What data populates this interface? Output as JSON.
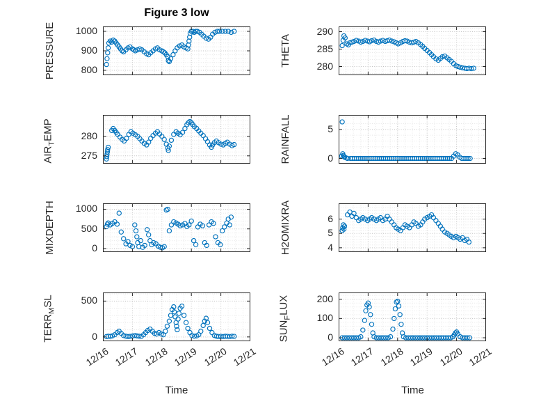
{
  "title": "Figure 3 low",
  "x_axis": {
    "label": "Time",
    "lim": [
      0,
      5
    ],
    "ticks": [
      0,
      1,
      2,
      3,
      4,
      5
    ],
    "tick_labels": [
      "12/16",
      "12/17",
      "12/18",
      "12/19",
      "12/20",
      "12/21"
    ]
  },
  "style": {
    "marker_color": "#0072BD",
    "axis_color": "#262626",
    "grid_color": "#c3c3c3",
    "minor_grid_color": "#e7e7e7"
  },
  "chart_data": [
    {
      "type": "scatter",
      "name": "PRESSURE",
      "row": 0,
      "col": 0,
      "ylabel_parts": [
        {
          "text": "PRESSURE",
          "sub": false
        }
      ],
      "ylim": [
        775,
        1025
      ],
      "yticks": [
        800,
        900,
        1000
      ],
      "x": [
        0.12,
        0.14,
        0.16,
        0.18,
        0.2,
        0.25,
        0.3,
        0.35,
        0.4,
        0.45,
        0.5,
        0.55,
        0.6,
        0.65,
        0.7,
        0.78,
        0.85,
        0.92,
        1.0,
        1.05,
        1.1,
        1.18,
        1.25,
        1.32,
        1.4,
        1.48,
        1.55,
        1.62,
        1.7,
        1.78,
        1.85,
        1.92,
        2.0,
        2.05,
        2.1,
        2.15,
        2.2,
        2.22,
        2.25,
        2.3,
        2.38,
        2.45,
        2.52,
        2.6,
        2.68,
        2.75,
        2.82,
        2.88,
        2.9,
        2.92,
        2.94,
        2.96,
        3.0,
        3.05,
        3.1,
        3.15,
        3.2,
        3.28,
        3.35,
        3.42,
        3.5,
        3.58,
        3.65,
        3.72,
        3.8,
        3.88,
        3.95,
        4.05,
        4.15,
        4.25,
        4.35,
        4.45
      ],
      "y": [
        830,
        860,
        890,
        915,
        940,
        950,
        945,
        955,
        950,
        940,
        930,
        920,
        910,
        900,
        895,
        905,
        915,
        920,
        910,
        905,
        900,
        905,
        910,
        905,
        895,
        885,
        880,
        890,
        900,
        910,
        915,
        905,
        900,
        895,
        890,
        880,
        870,
        850,
        845,
        860,
        880,
        900,
        915,
        925,
        930,
        920,
        915,
        910,
        930,
        950,
        970,
        990,
        1000,
        1000,
        995,
        1000,
        1000,
        995,
        985,
        975,
        965,
        960,
        970,
        985,
        995,
        1000,
        1000,
        1000,
        1000,
        1000,
        995,
        1000
      ]
    },
    {
      "type": "scatter",
      "name": "AIR_TEMP",
      "row": 1,
      "col": 0,
      "ylabel_parts": [
        {
          "text": "AIR",
          "sub": false
        },
        {
          "text": "T",
          "sub": true
        },
        {
          "text": "EMP",
          "sub": false
        }
      ],
      "ylim": [
        273,
        285.5
      ],
      "yticks": [
        275,
        280
      ],
      "x": [
        0.12,
        0.13,
        0.14,
        0.15,
        0.16,
        0.18,
        0.3,
        0.35,
        0.4,
        0.45,
        0.5,
        0.58,
        0.65,
        0.72,
        0.8,
        0.88,
        0.95,
        1.02,
        1.1,
        1.18,
        1.25,
        1.32,
        1.4,
        1.48,
        1.55,
        1.62,
        1.7,
        1.78,
        1.85,
        1.92,
        2.0,
        2.08,
        2.15,
        2.2,
        2.22,
        2.25,
        2.32,
        2.4,
        2.48,
        2.55,
        2.62,
        2.7,
        2.78,
        2.85,
        2.9,
        2.95,
        3.0,
        3.05,
        3.1,
        3.18,
        3.25,
        3.32,
        3.4,
        3.48,
        3.55,
        3.62,
        3.68,
        3.72,
        3.78,
        3.85,
        3.92,
        4.0,
        4.08,
        4.15,
        4.22,
        4.3,
        4.38,
        4.45
      ],
      "y": [
        274.2,
        274.8,
        275.4,
        276.0,
        276.6,
        277.2,
        281.5,
        282.0,
        281.5,
        281.0,
        280.5,
        279.8,
        279.2,
        278.8,
        279.5,
        280.5,
        281.2,
        280.8,
        280.4,
        280.0,
        279.4,
        278.8,
        278.2,
        277.8,
        278.5,
        279.5,
        280.2,
        280.8,
        281.2,
        280.6,
        280.0,
        279.2,
        278.0,
        277.0,
        276.4,
        277.5,
        279.0,
        280.5,
        281.2,
        280.8,
        280.4,
        281.0,
        282.0,
        283.0,
        283.5,
        283.8,
        283.5,
        283.0,
        282.5,
        282.0,
        281.4,
        280.8,
        280.2,
        279.4,
        278.6,
        277.8,
        277.2,
        277.8,
        278.4,
        278.8,
        278.4,
        278.0,
        277.8,
        278.2,
        278.5,
        278.0,
        277.6,
        277.9
      ]
    },
    {
      "type": "scatter",
      "name": "MIXDEPTH",
      "row": 2,
      "col": 0,
      "ylabel_parts": [
        {
          "text": "MIXDEPTH",
          "sub": false
        }
      ],
      "ylim": [
        -90,
        1150
      ],
      "yticks": [
        0,
        500,
        1000
      ],
      "x": [
        0.12,
        0.15,
        0.18,
        0.25,
        0.32,
        0.4,
        0.48,
        0.55,
        0.62,
        0.7,
        0.78,
        0.85,
        0.92,
        1.0,
        1.08,
        1.12,
        1.15,
        1.18,
        1.22,
        1.28,
        1.35,
        1.42,
        1.5,
        1.55,
        1.6,
        1.65,
        1.72,
        1.8,
        1.88,
        1.95,
        2.02,
        2.08,
        2.15,
        2.2,
        2.25,
        2.32,
        2.4,
        2.48,
        2.55,
        2.62,
        2.7,
        2.78,
        2.85,
        2.92,
        3.0,
        3.08,
        3.15,
        3.22,
        3.3,
        3.38,
        3.45,
        3.52,
        3.6,
        3.68,
        3.75,
        3.82,
        3.9,
        3.98,
        4.05,
        4.12,
        4.2,
        4.25,
        4.3,
        4.35
      ],
      "y": [
        560,
        620,
        650,
        600,
        640,
        680,
        620,
        900,
        420,
        250,
        120,
        180,
        80,
        50,
        600,
        450,
        300,
        150,
        50,
        200,
        30,
        80,
        480,
        350,
        200,
        100,
        150,
        120,
        60,
        30,
        20,
        50,
        980,
        1000,
        450,
        600,
        680,
        650,
        620,
        580,
        600,
        640,
        560,
        600,
        700,
        200,
        100,
        550,
        620,
        580,
        150,
        80,
        600,
        680,
        640,
        300,
        150,
        100,
        450,
        550,
        650,
        750,
        600,
        800
      ]
    },
    {
      "type": "scatter",
      "name": "TERR_MSL",
      "row": 3,
      "col": 0,
      "ylabel_parts": [
        {
          "text": "TERR",
          "sub": false
        },
        {
          "text": "M",
          "sub": true
        },
        {
          "text": "SL",
          "sub": false
        }
      ],
      "ylim": [
        -60,
        620
      ],
      "yticks": [
        0,
        500
      ],
      "x": [
        0.12,
        0.18,
        0.25,
        0.32,
        0.4,
        0.48,
        0.55,
        0.62,
        0.7,
        0.78,
        0.85,
        0.92,
        1.0,
        1.08,
        1.15,
        1.22,
        1.3,
        1.38,
        1.45,
        1.52,
        1.6,
        1.68,
        1.75,
        1.82,
        1.9,
        1.98,
        2.05,
        2.12,
        2.18,
        2.25,
        2.3,
        2.35,
        2.4,
        2.42,
        2.45,
        2.48,
        2.5,
        2.52,
        2.55,
        2.58,
        2.62,
        2.68,
        2.75,
        2.82,
        2.88,
        2.95,
        3.02,
        3.1,
        3.18,
        3.25,
        3.32,
        3.4,
        3.45,
        3.5,
        3.55,
        3.62,
        3.7,
        3.78,
        3.85,
        3.92,
        4.0,
        4.08,
        4.15,
        4.22,
        4.3,
        4.38,
        4.45
      ],
      "y": [
        5,
        10,
        8,
        15,
        30,
        60,
        80,
        50,
        20,
        10,
        5,
        8,
        12,
        20,
        15,
        10,
        8,
        30,
        60,
        90,
        110,
        80,
        50,
        40,
        60,
        40,
        30,
        80,
        150,
        220,
        300,
        380,
        420,
        350,
        280,
        200,
        150,
        100,
        250,
        330,
        400,
        430,
        300,
        200,
        120,
        60,
        20,
        10,
        15,
        30,
        80,
        160,
        220,
        260,
        200,
        120,
        60,
        20,
        10,
        5,
        8,
        5,
        10,
        8,
        5,
        10,
        8
      ]
    },
    {
      "type": "scatter",
      "name": "THETA",
      "row": 0,
      "col": 1,
      "ylabel_parts": [
        {
          "text": "THETA",
          "sub": false
        }
      ],
      "ylim": [
        277.5,
        291.5
      ],
      "yticks": [
        280,
        285,
        290
      ],
      "x": [
        0.12,
        0.15,
        0.18,
        0.22,
        0.28,
        0.33,
        0.38,
        0.45,
        0.52,
        0.6,
        0.68,
        0.75,
        0.82,
        0.9,
        0.98,
        1.05,
        1.12,
        1.2,
        1.28,
        1.35,
        1.42,
        1.5,
        1.58,
        1.65,
        1.72,
        1.8,
        1.88,
        1.95,
        2.02,
        2.1,
        2.18,
        2.25,
        2.32,
        2.4,
        2.48,
        2.55,
        2.62,
        2.7,
        2.78,
        2.85,
        2.92,
        3.0,
        3.08,
        3.15,
        3.22,
        3.3,
        3.38,
        3.45,
        3.52,
        3.6,
        3.68,
        3.75,
        3.82,
        3.9,
        3.98,
        4.05,
        4.12,
        4.2,
        4.28,
        4.35,
        4.42,
        4.5,
        4.58
      ],
      "y": [
        286.0,
        287.5,
        288.8,
        288.2,
        286.5,
        286.2,
        286.8,
        287.0,
        287.2,
        287.5,
        287.3,
        287.0,
        287.2,
        287.5,
        287.3,
        287.1,
        287.4,
        287.6,
        287.2,
        287.0,
        287.3,
        287.5,
        287.2,
        287.4,
        287.6,
        287.3,
        287.1,
        286.8,
        286.5,
        286.8,
        287.2,
        287.4,
        287.3,
        287.0,
        286.8,
        287.0,
        287.2,
        286.8,
        286.3,
        285.8,
        285.2,
        284.6,
        284.0,
        283.4,
        282.8,
        282.2,
        281.8,
        282.3,
        282.8,
        283.0,
        282.5,
        282.0,
        281.5,
        280.8,
        280.2,
        280.0,
        279.8,
        279.6,
        279.5,
        279.4,
        279.5,
        279.4,
        279.5
      ]
    },
    {
      "type": "scatter",
      "name": "RAINFALL",
      "row": 1,
      "col": 1,
      "ylabel_parts": [
        {
          "text": "RAINFALL",
          "sub": false
        }
      ],
      "ylim": [
        -0.9,
        7.5
      ],
      "yticks": [
        0,
        5
      ],
      "x": [
        0.1,
        0.12,
        0.14,
        0.16,
        0.18,
        0.2,
        0.25,
        0.3,
        0.4,
        0.47,
        0.54,
        0.61,
        0.68,
        0.75,
        0.82,
        0.89,
        0.96,
        1.03,
        1.1,
        1.17,
        1.24,
        1.31,
        1.38,
        1.45,
        1.52,
        1.59,
        1.66,
        1.73,
        1.8,
        1.87,
        1.94,
        2.01,
        2.08,
        2.15,
        2.22,
        2.29,
        2.36,
        2.43,
        2.5,
        2.57,
        2.64,
        2.71,
        2.78,
        2.85,
        2.92,
        2.99,
        3.06,
        3.13,
        3.2,
        3.27,
        3.34,
        3.41,
        3.48,
        3.55,
        3.62,
        3.69,
        3.76,
        3.83,
        3.9,
        3.97,
        4.04,
        4.11,
        4.18,
        4.25,
        4.32,
        4.39,
        4.46
      ],
      "y": [
        0.4,
        6.3,
        0.8,
        0.5,
        0.3,
        0.2,
        0.1,
        0,
        0,
        0,
        0,
        0,
        0,
        0,
        0,
        0,
        0,
        0,
        0,
        0,
        0,
        0,
        0,
        0,
        0,
        0,
        0,
        0,
        0,
        0,
        0,
        0,
        0,
        0,
        0,
        0,
        0,
        0,
        0,
        0,
        0,
        0,
        0,
        0,
        0,
        0,
        0,
        0,
        0,
        0,
        0,
        0,
        0,
        0,
        0,
        0,
        0,
        0,
        0.4,
        0.8,
        0.6,
        0.2,
        0,
        0,
        0,
        0,
        0
      ]
    },
    {
      "type": "scatter",
      "name": "H2OMIXRA",
      "row": 2,
      "col": 1,
      "ylabel_parts": [
        {
          "text": "H2OMIXRA",
          "sub": false
        }
      ],
      "ylim": [
        3.7,
        7.1
      ],
      "yticks": [
        4,
        5,
        6
      ],
      "x": [
        0.12,
        0.14,
        0.16,
        0.18,
        0.2,
        0.3,
        0.38,
        0.45,
        0.52,
        0.6,
        0.68,
        0.75,
        0.82,
        0.9,
        0.98,
        1.05,
        1.12,
        1.2,
        1.28,
        1.35,
        1.42,
        1.5,
        1.58,
        1.65,
        1.72,
        1.8,
        1.88,
        1.95,
        2.02,
        2.1,
        2.18,
        2.25,
        2.32,
        2.4,
        2.48,
        2.55,
        2.62,
        2.7,
        2.78,
        2.85,
        2.92,
        3.0,
        3.08,
        3.15,
        3.22,
        3.3,
        3.38,
        3.45,
        3.52,
        3.6,
        3.68,
        3.75,
        3.82,
        3.9,
        3.98,
        4.05,
        4.12,
        4.2,
        4.28,
        4.35,
        4.42
      ],
      "y": [
        5.2,
        5.4,
        5.6,
        5.3,
        5.5,
        6.3,
        6.5,
        6.2,
        6.4,
        6.1,
        5.9,
        6.0,
        6.1,
        6.0,
        5.9,
        6.0,
        6.1,
        6.0,
        5.9,
        6.0,
        6.1,
        5.9,
        6.0,
        6.2,
        6.0,
        5.8,
        5.6,
        5.4,
        5.3,
        5.2,
        5.4,
        5.6,
        5.5,
        5.4,
        5.6,
        5.8,
        5.7,
        5.5,
        5.6,
        5.8,
        6.0,
        6.1,
        6.2,
        6.3,
        6.1,
        5.9,
        5.7,
        5.5,
        5.3,
        5.1,
        5.0,
        4.9,
        4.8,
        4.7,
        4.8,
        4.7,
        4.6,
        4.7,
        4.5,
        4.6,
        4.4
      ]
    },
    {
      "type": "scatter",
      "name": "SUN_FLUX",
      "row": 3,
      "col": 1,
      "ylabel_parts": [
        {
          "text": "SUN",
          "sub": false
        },
        {
          "text": "F",
          "sub": true
        },
        {
          "text": "LUX",
          "sub": false
        }
      ],
      "ylim": [
        -18,
        235
      ],
      "yticks": [
        0,
        100,
        200
      ],
      "x": [
        0.12,
        0.2,
        0.28,
        0.36,
        0.44,
        0.52,
        0.6,
        0.68,
        0.75,
        0.82,
        0.88,
        0.92,
        0.96,
        1.0,
        1.04,
        1.08,
        1.12,
        1.16,
        1.2,
        1.28,
        1.36,
        1.44,
        1.52,
        1.6,
        1.68,
        1.76,
        1.84,
        1.88,
        1.92,
        1.96,
        2.0,
        2.04,
        2.08,
        2.12,
        2.16,
        2.2,
        2.28,
        2.36,
        2.44,
        2.52,
        2.6,
        2.68,
        2.76,
        2.84,
        2.92,
        3.0,
        3.08,
        3.16,
        3.24,
        3.32,
        3.4,
        3.48,
        3.56,
        3.64,
        3.72,
        3.8,
        3.88,
        3.92,
        3.96,
        4.0,
        4.04,
        4.12,
        4.2,
        4.28,
        4.36,
        4.44
      ],
      "y": [
        0,
        0,
        0,
        0,
        0,
        0,
        0,
        0,
        5,
        40,
        90,
        140,
        170,
        180,
        160,
        120,
        70,
        25,
        5,
        0,
        0,
        0,
        0,
        0,
        0,
        5,
        45,
        100,
        150,
        185,
        190,
        165,
        120,
        70,
        25,
        5,
        0,
        0,
        0,
        0,
        0,
        0,
        0,
        0,
        0,
        0,
        0,
        0,
        0,
        0,
        0,
        0,
        0,
        0,
        0,
        0,
        5,
        15,
        25,
        30,
        20,
        5,
        0,
        0,
        0,
        0
      ]
    }
  ]
}
